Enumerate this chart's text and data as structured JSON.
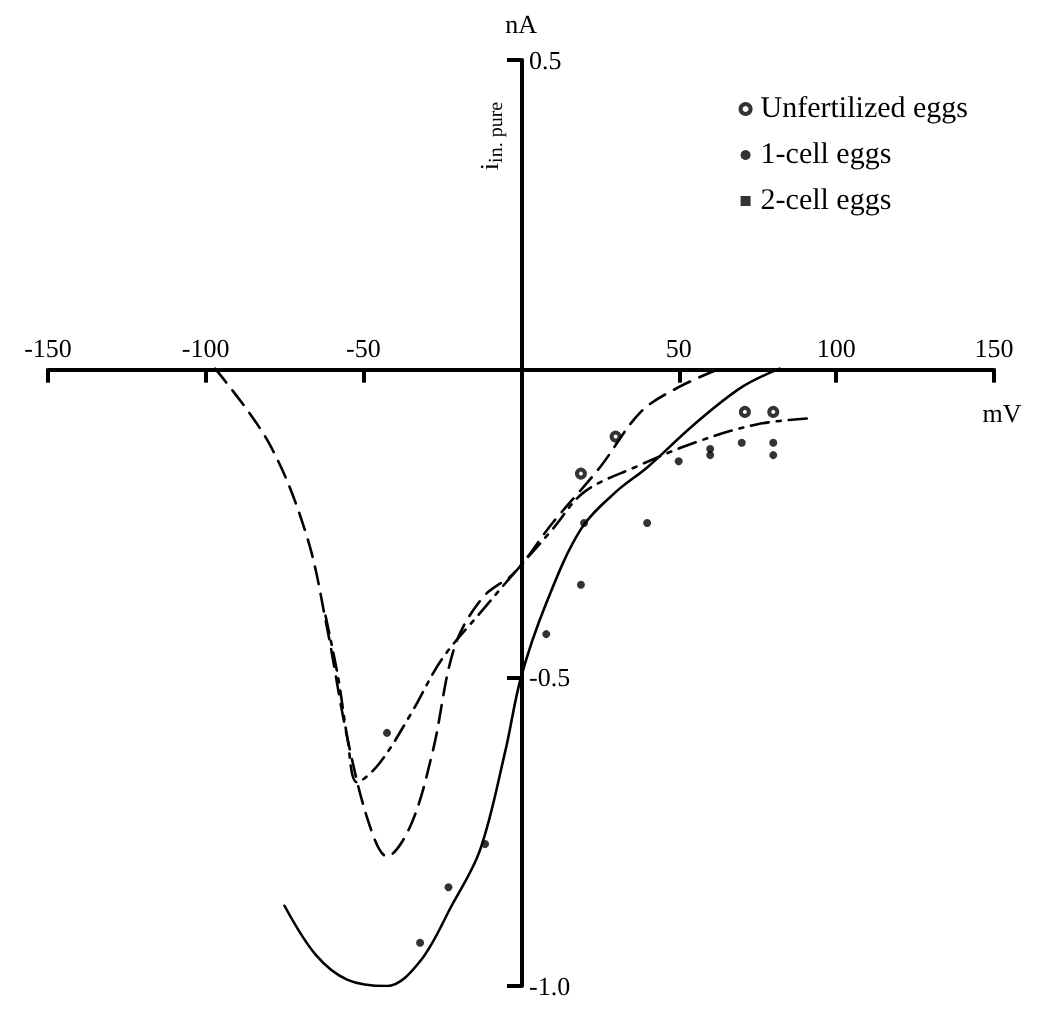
{
  "chart_data": {
    "type": "line",
    "xlabel": "mV",
    "ylabel": "nA",
    "annotations": [
      "i$_{in. pure}$"
    ],
    "xlim": [
      -150,
      150
    ],
    "xticks": [
      -150,
      -100,
      -50,
      50,
      100,
      150
    ],
    "ylim": [
      -1,
      0.5
    ],
    "yticks": [
      0.5,
      -0.5,
      {
        "value": -1,
        "label": "-1.0"
      }
    ],
    "grid": false,
    "legend": "top right",
    "series": [
      {
        "type": "line",
        "color": "#000000",
        "marker": "none",
        "line_style": "dashed",
        "x": [
          -97,
          -80,
          -68,
          -61.5,
          -55,
          -48,
          -42.5,
          -35,
          -28,
          -21,
          -12,
          -2,
          10,
          25,
          38,
          50,
          63
        ],
        "values": [
          0,
          -0.12,
          -0.27,
          -0.42,
          -0.6,
          -0.74,
          -0.79,
          -0.74,
          -0.62,
          -0.45,
          -0.37,
          -0.33,
          -0.25,
          -0.16,
          -0.07,
          -0.03,
          0
        ]
      },
      {
        "type": "line",
        "color": "#000000",
        "marker": "none",
        "line_style": "dashdot",
        "x": [
          -62,
          -58,
          -55,
          -52,
          -45,
          -35,
          -25,
          -12,
          -2,
          10,
          20,
          36,
          55,
          75,
          93
        ],
        "values": [
          -0.4,
          -0.5,
          -0.6,
          -0.67,
          -0.64,
          -0.56,
          -0.47,
          -0.39,
          -0.33,
          -0.26,
          -0.2,
          -0.16,
          -0.12,
          -0.09,
          -0.08
        ]
      },
      {
        "type": "line",
        "color": "#000000",
        "marker": "none",
        "line_style": "solid",
        "x": [
          -75,
          -65,
          -55,
          -42.5,
          -32,
          -22,
          -13,
          -5,
          0,
          8,
          19,
          30,
          40,
          55,
          70,
          82
        ],
        "values": [
          -0.87,
          -0.95,
          -0.99,
          -1.0,
          -0.96,
          -0.87,
          -0.78,
          -0.62,
          -0.5,
          -0.38,
          -0.26,
          -0.2,
          -0.16,
          -0.09,
          -0.03,
          0
        ]
      },
      {
        "type": "scatter",
        "name": "Unfertilized eggs",
        "color": "#000000",
        "marker": "circle_open",
        "x": [
          30,
          19,
          71,
          80
        ],
        "values": [
          -0.11,
          -0.17,
          -0.07,
          -0.07
        ]
      },
      {
        "type": "scatter",
        "name": "1-cell eggs",
        "color": "#000000",
        "marker": "circle",
        "x": [
          -42.5,
          -11.4,
          -23,
          -32,
          19,
          8,
          20,
          40,
          50,
          60,
          60,
          70,
          80,
          80
        ],
        "values": [
          -0.59,
          -0.77,
          -0.84,
          -0.93,
          -0.35,
          -0.43,
          -0.25,
          -0.25,
          -0.15,
          -0.13,
          -0.14,
          -0.12,
          -0.12,
          -0.14
        ]
      },
      {
        "type": "scatter",
        "name": "2-cell eggs",
        "color": "#000000",
        "marker": "square"
      }
    ]
  }
}
